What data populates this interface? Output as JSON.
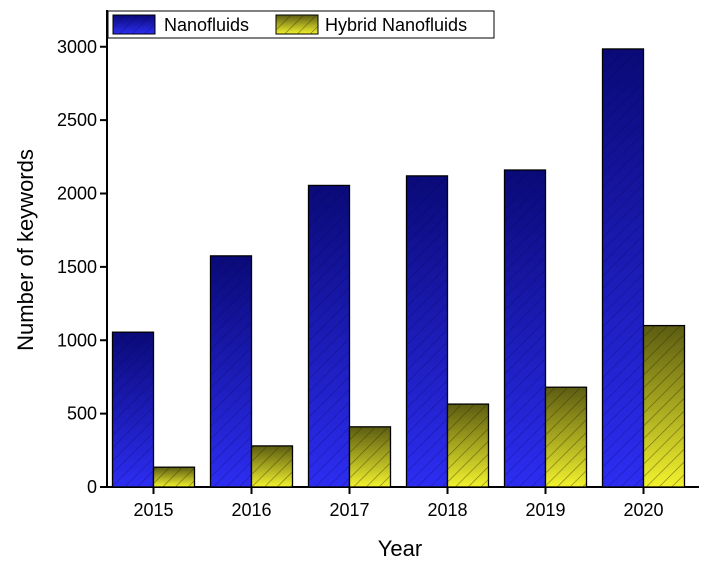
{
  "chart_data": {
    "type": "bar",
    "xlabel": "Year",
    "ylabel": "Number of keywords",
    "categories": [
      "2015",
      "2016",
      "2017",
      "2018",
      "2019",
      "2020"
    ],
    "series": [
      {
        "name": "Nanofluids",
        "values": [
          1055,
          1575,
          2055,
          2120,
          2160,
          2985
        ],
        "color": "#1a1aa6"
      },
      {
        "name": "Hybrid Nanofluids",
        "values": [
          135,
          280,
          410,
          565,
          680,
          1100
        ],
        "color": "#d9d92a"
      }
    ],
    "ylim": [
      0,
      3200
    ],
    "yticks": [
      0,
      500,
      1000,
      1500,
      2000,
      2500,
      3000
    ],
    "legend_position": "top-left",
    "grid": false
  }
}
